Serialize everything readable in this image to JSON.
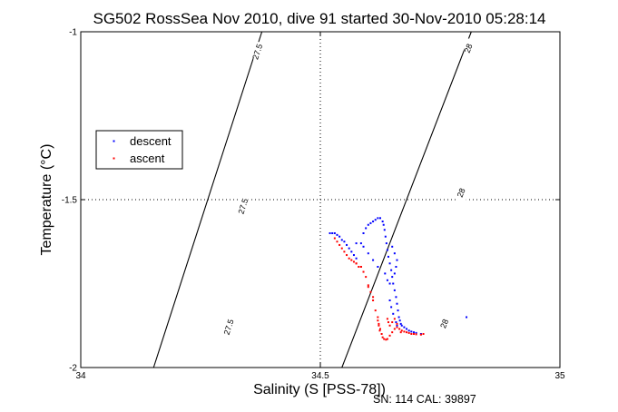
{
  "chart_data": {
    "type": "scatter",
    "title": "SG502 RossSea Nov 2010, dive 91 started 30-Nov-2010 05:28:14",
    "xlabel": "Salinity (S [PSS-78])",
    "ylabel": "Temperature (°C)",
    "xlim": [
      34,
      35
    ],
    "ylim": [
      -2,
      -1
    ],
    "x_ticks": [
      "34",
      "34.5",
      "35"
    ],
    "y_ticks": [
      "-1",
      "-1.5",
      "-2"
    ],
    "grid": "dotted at x=34.5 and y=-1.5",
    "legend_position": "left",
    "footer": "SN: 114  CAL: 39897",
    "density_contours": [
      {
        "label": "27.5",
        "points": [
          [
            34.378,
            -1
          ],
          [
            34.152,
            -2
          ]
        ],
        "label_positions": [
          [
            34.37,
            -1.06
          ],
          [
            34.34,
            -1.52
          ],
          [
            34.31,
            -1.88
          ]
        ]
      },
      {
        "label": "28",
        "points": [
          [
            34.815,
            -1
          ],
          [
            34.545,
            -2
          ]
        ],
        "label_positions": [
          [
            34.81,
            -1.05
          ],
          [
            34.795,
            -1.48
          ],
          [
            34.76,
            -1.87
          ]
        ]
      }
    ],
    "series": [
      {
        "name": "descent",
        "color": "#0000ff",
        "points": [
          [
            34.52,
            -1.6
          ],
          [
            34.525,
            -1.6
          ],
          [
            34.53,
            -1.6
          ],
          [
            34.535,
            -1.605
          ],
          [
            34.54,
            -1.61
          ],
          [
            34.545,
            -1.62
          ],
          [
            34.55,
            -1.625
          ],
          [
            34.555,
            -1.635
          ],
          [
            34.56,
            -1.645
          ],
          [
            34.565,
            -1.655
          ],
          [
            34.57,
            -1.665
          ],
          [
            34.575,
            -1.675
          ],
          [
            34.585,
            -1.63
          ],
          [
            34.59,
            -1.6
          ],
          [
            34.595,
            -1.585
          ],
          [
            34.6,
            -1.575
          ],
          [
            34.605,
            -1.57
          ],
          [
            34.61,
            -1.565
          ],
          [
            34.615,
            -1.56
          ],
          [
            34.62,
            -1.555
          ],
          [
            34.625,
            -1.555
          ],
          [
            34.63,
            -1.565
          ],
          [
            34.632,
            -1.575
          ],
          [
            34.634,
            -1.59
          ],
          [
            34.636,
            -1.61
          ],
          [
            34.638,
            -1.63
          ],
          [
            34.64,
            -1.65
          ],
          [
            34.642,
            -1.67
          ],
          [
            34.645,
            -1.69
          ],
          [
            34.648,
            -1.71
          ],
          [
            34.65,
            -1.73
          ],
          [
            34.652,
            -1.75
          ],
          [
            34.655,
            -1.77
          ],
          [
            34.658,
            -1.79
          ],
          [
            34.66,
            -1.81
          ],
          [
            34.662,
            -1.83
          ],
          [
            34.664,
            -1.85
          ],
          [
            34.666,
            -1.86
          ],
          [
            34.668,
            -1.87
          ],
          [
            34.67,
            -1.875
          ],
          [
            34.675,
            -1.88
          ],
          [
            34.68,
            -1.885
          ],
          [
            34.685,
            -1.89
          ],
          [
            34.69,
            -1.893
          ],
          [
            34.695,
            -1.895
          ],
          [
            34.7,
            -1.897
          ],
          [
            34.71,
            -1.9
          ],
          [
            34.65,
            -1.64
          ],
          [
            34.655,
            -1.66
          ],
          [
            34.66,
            -1.68
          ],
          [
            34.658,
            -1.7
          ],
          [
            34.655,
            -1.72
          ],
          [
            34.645,
            -1.75
          ],
          [
            34.64,
            -1.74
          ],
          [
            34.635,
            -1.72
          ],
          [
            34.62,
            -1.7
          ],
          [
            34.61,
            -1.68
          ],
          [
            34.6,
            -1.66
          ],
          [
            34.59,
            -1.64
          ],
          [
            34.575,
            -1.63
          ],
          [
            34.805,
            -1.85
          ],
          [
            34.645,
            -1.8
          ],
          [
            34.648,
            -1.82
          ],
          [
            34.652,
            -1.84
          ],
          [
            34.658,
            -1.865
          ],
          [
            34.66,
            -1.875
          ]
        ]
      },
      {
        "name": "ascent",
        "color": "#ff0000",
        "points": [
          [
            34.53,
            -1.615
          ],
          [
            34.535,
            -1.625
          ],
          [
            34.54,
            -1.635
          ],
          [
            34.545,
            -1.645
          ],
          [
            34.55,
            -1.655
          ],
          [
            34.555,
            -1.665
          ],
          [
            34.56,
            -1.675
          ],
          [
            34.565,
            -1.68
          ],
          [
            34.57,
            -1.685
          ],
          [
            34.575,
            -1.69
          ],
          [
            34.58,
            -1.7
          ],
          [
            34.585,
            -1.7
          ],
          [
            34.59,
            -1.715
          ],
          [
            34.595,
            -1.73
          ],
          [
            34.6,
            -1.755
          ],
          [
            34.605,
            -1.775
          ],
          [
            34.61,
            -1.8
          ],
          [
            34.615,
            -1.83
          ],
          [
            34.62,
            -1.86
          ],
          [
            34.622,
            -1.875
          ],
          [
            34.625,
            -1.885
          ],
          [
            34.628,
            -1.9
          ],
          [
            34.63,
            -1.91
          ],
          [
            34.633,
            -1.915
          ],
          [
            34.637,
            -1.917
          ],
          [
            34.64,
            -1.915
          ],
          [
            34.645,
            -1.905
          ],
          [
            34.65,
            -1.895
          ],
          [
            34.655,
            -1.885
          ],
          [
            34.66,
            -1.88
          ],
          [
            34.665,
            -1.885
          ],
          [
            34.67,
            -1.89
          ],
          [
            34.675,
            -1.893
          ],
          [
            34.68,
            -1.895
          ],
          [
            34.685,
            -1.897
          ],
          [
            34.69,
            -1.9
          ],
          [
            34.695,
            -1.9
          ],
          [
            34.7,
            -1.901
          ],
          [
            34.71,
            -1.902
          ],
          [
            34.715,
            -1.9
          ],
          [
            34.62,
            -1.85
          ],
          [
            34.622,
            -1.87
          ],
          [
            34.624,
            -1.89
          ],
          [
            34.64,
            -1.855
          ],
          [
            34.642,
            -1.865
          ],
          [
            34.645,
            -1.875
          ],
          [
            34.65,
            -1.865
          ],
          [
            34.655,
            -1.855
          ],
          [
            34.66,
            -1.87
          ],
          [
            34.668,
            -1.895
          ],
          [
            34.585,
            -1.7
          ],
          [
            34.6,
            -1.76
          ],
          [
            34.61,
            -1.79
          ],
          [
            34.575,
            -1.69
          ]
        ]
      }
    ]
  }
}
